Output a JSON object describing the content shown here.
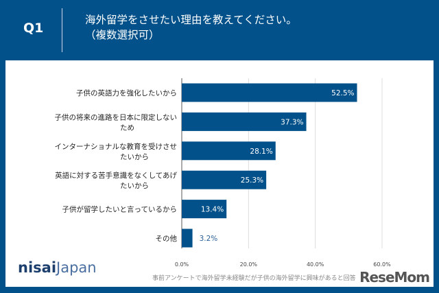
{
  "header": {
    "question": "Q1",
    "title_line1": "海外留学をさせたい理由を教えてください。",
    "title_line2": "（複数選択可）"
  },
  "footnote": "事前アンケートで海外留学未経験だが子供の海外留学に興味があると回答",
  "logo": {
    "brand_bold": "nisai",
    "brand_light": "Japan",
    "watermark": "ReseMom"
  },
  "chart_data": {
    "type": "bar",
    "orientation": "horizontal",
    "categories": [
      [
        "子供の英語力を強化したいから"
      ],
      [
        "子供の将来の進路を日本に限定しない",
        "ため"
      ],
      [
        "インターナショナルな教育を受けさせ",
        "たいから"
      ],
      [
        "英語に対する苦手意識をなくしてあげ",
        "たいから"
      ],
      [
        "子供が留学したいと言っているから"
      ],
      [
        "その他"
      ]
    ],
    "values": [
      52.5,
      37.3,
      28.1,
      25.3,
      13.4,
      3.2
    ],
    "value_labels": [
      "52.5%",
      "37.3%",
      "28.1%",
      "25.3%",
      "13.4%",
      "3.2%"
    ],
    "xlim": [
      0,
      70
    ],
    "xticks": [
      0,
      20,
      40,
      60
    ],
    "xtick_labels": [
      "0.0%",
      "20.0%",
      "40.0%",
      "60.0%"
    ],
    "grid": true,
    "bar_color": "#02518a",
    "label_color": "#ffffff",
    "outside_label_color": "#2a5f96"
  }
}
